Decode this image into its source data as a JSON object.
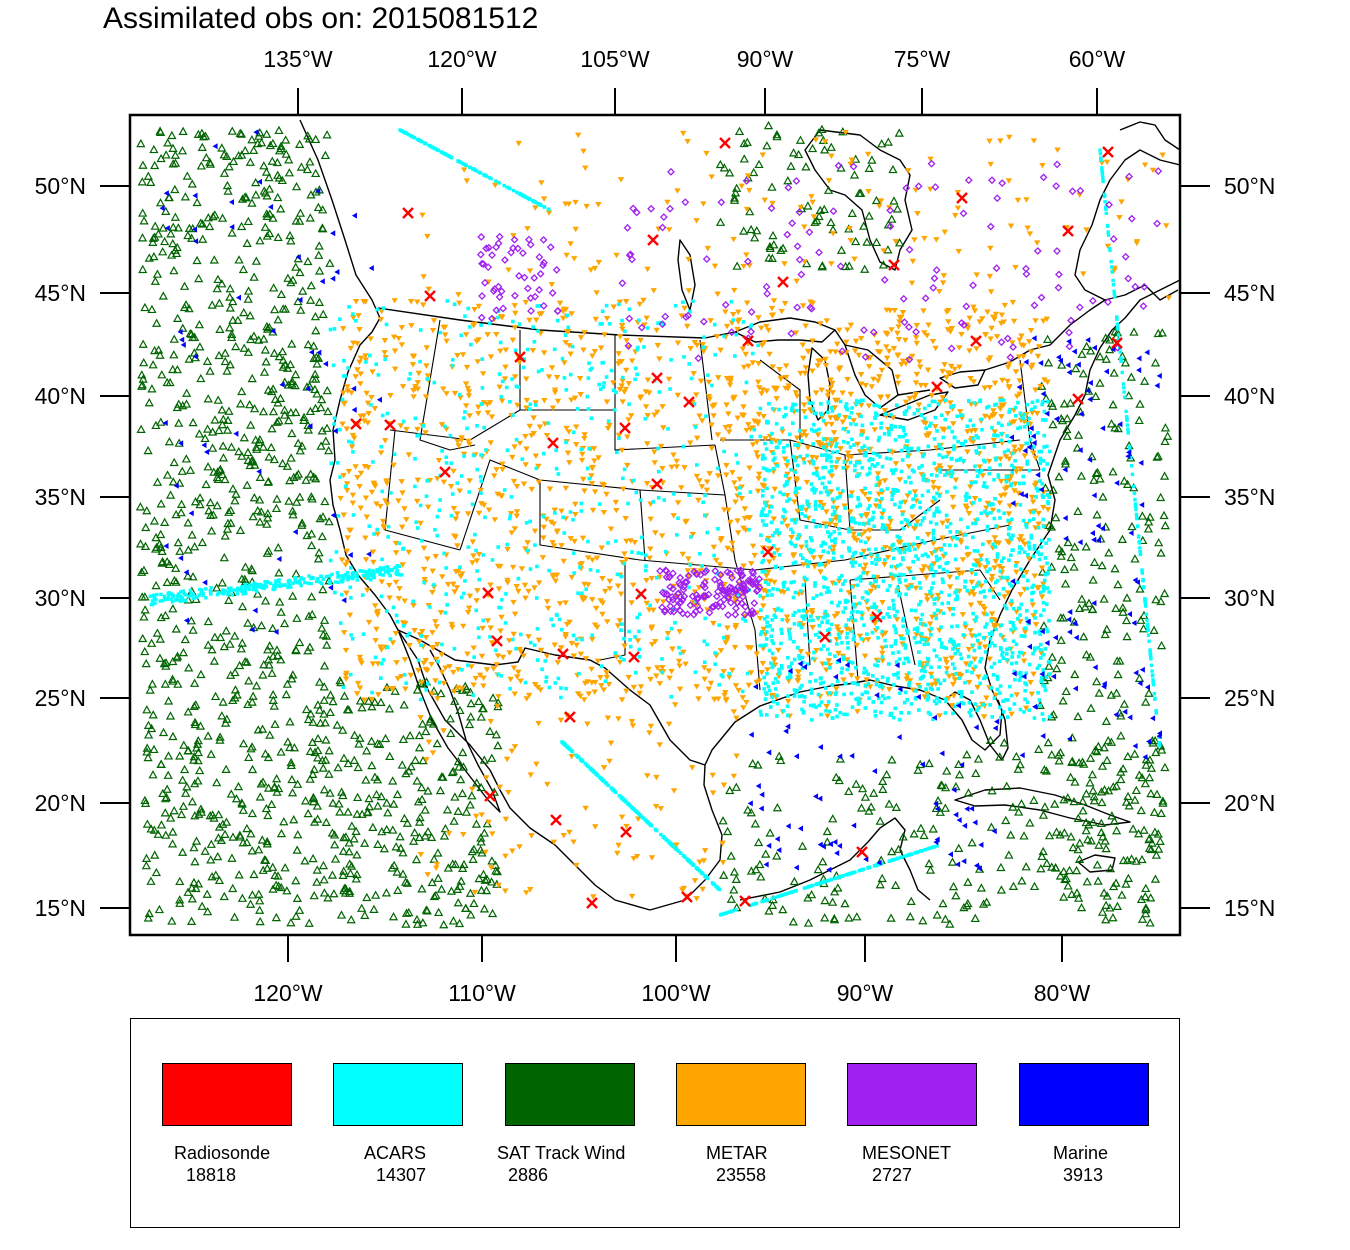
{
  "title": "Assimilated obs on: 2015081512",
  "top_lon_labels": [
    "135°W",
    "120°W",
    "105°W",
    "90°W",
    "75°W",
    "60°W"
  ],
  "bottom_lon_labels": [
    "120°W",
    "110°W",
    "100°W",
    "90°W",
    "80°W"
  ],
  "lat_labels": [
    "50°N",
    "45°N",
    "40°N",
    "35°N",
    "30°N",
    "25°N",
    "20°N",
    "15°N"
  ],
  "legend": [
    {
      "name": "Radiosonde",
      "count": "18818",
      "color": "#ff0000",
      "marker": "x-cross"
    },
    {
      "name": "ACARS",
      "count": "14307",
      "color": "#00ffff",
      "marker": "square"
    },
    {
      "name": "SAT Track Wind",
      "count": "2886",
      "color": "#006400",
      "marker": "triangle-outline"
    },
    {
      "name": "METAR",
      "count": "23558",
      "color": "#ffa500",
      "marker": "triangle-down"
    },
    {
      "name": "MESONET",
      "count": "2727",
      "color": "#a020f0",
      "marker": "diamond"
    },
    {
      "name": "Marine",
      "count": "3913",
      "color": "#0000ff",
      "marker": "triangle-left"
    }
  ]
}
